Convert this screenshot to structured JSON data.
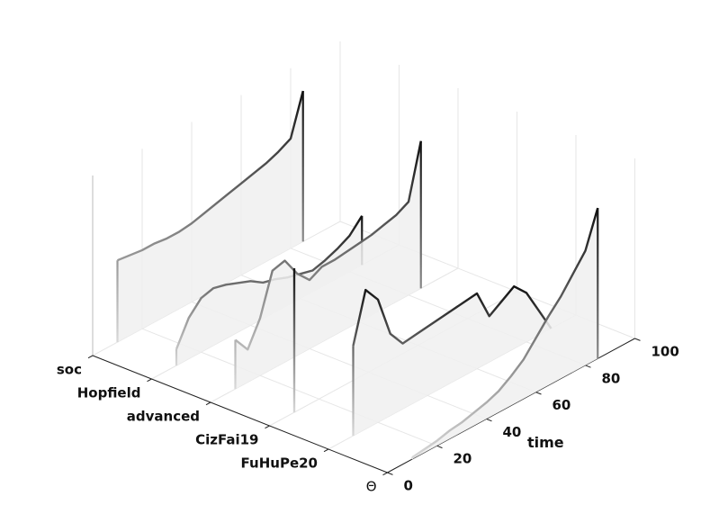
{
  "chart_data": {
    "type": "waterfall3d",
    "categories": [
      "soc",
      "Hopfield",
      "advanced",
      "CizFai19",
      "FuHuPe20",
      "Θ"
    ],
    "x": [
      0,
      5,
      10,
      15,
      20,
      25,
      30,
      35,
      40,
      45,
      50,
      55,
      60,
      65,
      70,
      75,
      80,
      85,
      90,
      95,
      100
    ],
    "xlabel": "time",
    "xlim": [
      0,
      100
    ],
    "xticks": [
      0,
      20,
      40,
      60,
      80,
      100
    ],
    "zlim": [
      0,
      1.1
    ],
    "grid": true,
    "series": [
      {
        "values": [
          null,
          null,
          0.5,
          0.49,
          0.48,
          0.48,
          0.47,
          0.47,
          0.48,
          0.5,
          0.52,
          0.54,
          0.56,
          0.58,
          0.6,
          0.63,
          0.67,
          0.92,
          null,
          null,
          null
        ]
      },
      {
        "values": [
          null,
          null,
          0.1,
          0.25,
          0.33,
          0.35,
          0.33,
          0.3,
          0.27,
          0.22,
          0.2,
          0.17,
          0.15,
          0.13,
          0.15,
          0.18,
          0.22,
          0.3,
          null,
          null,
          null
        ]
      },
      {
        "values": [
          null,
          null,
          0.3,
          0.2,
          0.35,
          0.6,
          0.62,
          0.5,
          0.42,
          0.46,
          0.46,
          0.47,
          0.48,
          0.49,
          0.51,
          0.53,
          0.57,
          0.9,
          null,
          null,
          null
        ]
      },
      {
        "values": [
          null,
          null,
          0.88,
          null,
          null,
          null,
          null,
          null,
          null,
          null,
          null,
          null,
          null,
          null,
          null,
          null,
          null,
          null,
          null,
          null,
          null
        ]
      },
      {
        "values": [
          null,
          null,
          0.55,
          0.85,
          0.75,
          0.5,
          0.4,
          0.41,
          0.42,
          0.43,
          0.44,
          0.45,
          0.46,
          0.28,
          0.33,
          0.38,
          0.3,
          0.15,
          0,
          null,
          null
        ]
      },
      {
        "values": [
          null,
          null,
          0.01,
          0.02,
          0.03,
          0.05,
          0.06,
          0.08,
          0.1,
          0.13,
          0.18,
          0.24,
          0.33,
          0.42,
          0.5,
          0.6,
          0.7,
          0.92,
          null,
          null,
          null
        ]
      }
    ]
  }
}
